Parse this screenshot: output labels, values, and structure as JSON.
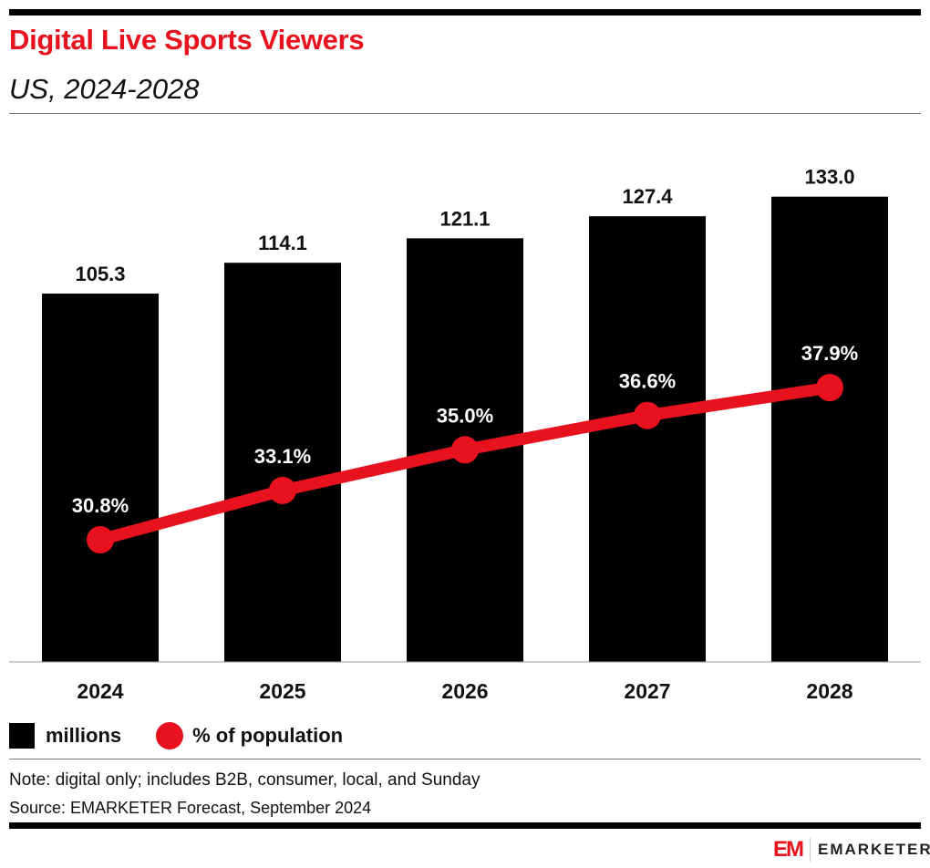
{
  "header": {
    "title": "Digital Live Sports Viewers",
    "subtitle": "US, 2024-2028"
  },
  "chart_data": {
    "type": "bar",
    "categories": [
      "2024",
      "2025",
      "2026",
      "2027",
      "2028"
    ],
    "series": [
      {
        "name": "millions",
        "kind": "bar",
        "values": [
          105.3,
          114.1,
          121.1,
          127.4,
          133.0
        ],
        "labels": [
          "105.3",
          "114.1",
          "121.1",
          "127.4",
          "133.0"
        ],
        "color": "#000000"
      },
      {
        "name": "% of population",
        "kind": "line",
        "values": [
          30.8,
          33.1,
          35.0,
          36.6,
          37.9
        ],
        "labels": [
          "30.8%",
          "33.1%",
          "35.0%",
          "36.6%",
          "37.9%"
        ],
        "color": "#e8111e"
      }
    ],
    "ylim": [
      0,
      140
    ],
    "grid": false,
    "legend_position": "bottom-left"
  },
  "legend": {
    "bar": "millions",
    "line": "% of population"
  },
  "footer": {
    "note": "Note: digital only; includes B2B, consumer, local, and Sunday",
    "source": "Source: EMARKETER Forecast, September 2024",
    "logo": "EMARKETER"
  }
}
